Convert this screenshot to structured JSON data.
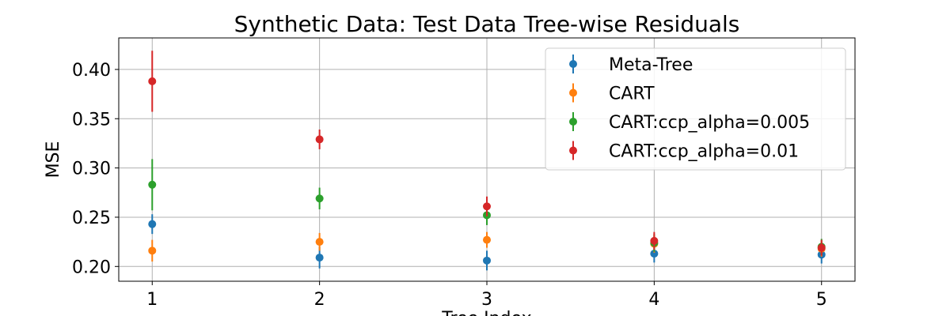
{
  "chart_data": {
    "type": "scatter",
    "title": "Synthetic Data: Test Data Tree-wise Residuals",
    "xlabel": "Tree Index",
    "ylabel": "MSE",
    "x": [
      1,
      2,
      3,
      4,
      5
    ],
    "xlim": [
      0.8,
      5.2
    ],
    "ylim": [
      0.185,
      0.432
    ],
    "xticks": [
      "1",
      "2",
      "3",
      "4",
      "5"
    ],
    "yticks": [
      "0.20",
      "0.25",
      "0.30",
      "0.35",
      "0.40"
    ],
    "ytick_values": [
      0.2,
      0.25,
      0.3,
      0.35,
      0.4
    ],
    "grid": true,
    "legend_position": "top-right",
    "series": [
      {
        "name": "Meta-Tree",
        "color": "#1f77b4",
        "values": [
          0.243,
          0.209,
          0.206,
          0.213,
          0.212
        ],
        "errors": [
          0.01,
          0.011,
          0.01,
          0.009,
          0.009
        ]
      },
      {
        "name": "CART",
        "color": "#ff7f0e",
        "values": [
          0.216,
          0.225,
          0.227,
          0.223,
          0.218
        ],
        "errors": [
          0.011,
          0.009,
          0.008,
          0.009,
          0.008
        ]
      },
      {
        "name": "CART:ccp_alpha=0.005",
        "color": "#2ca02c",
        "values": [
          0.283,
          0.269,
          0.252,
          0.224,
          0.22
        ],
        "errors": [
          0.026,
          0.011,
          0.01,
          0.009,
          0.008
        ]
      },
      {
        "name": "CART:ccp_alpha=0.01",
        "color": "#d62728",
        "values": [
          0.388,
          0.329,
          0.261,
          0.226,
          0.219
        ],
        "errors": [
          0.031,
          0.01,
          0.01,
          0.009,
          0.008
        ]
      }
    ]
  }
}
